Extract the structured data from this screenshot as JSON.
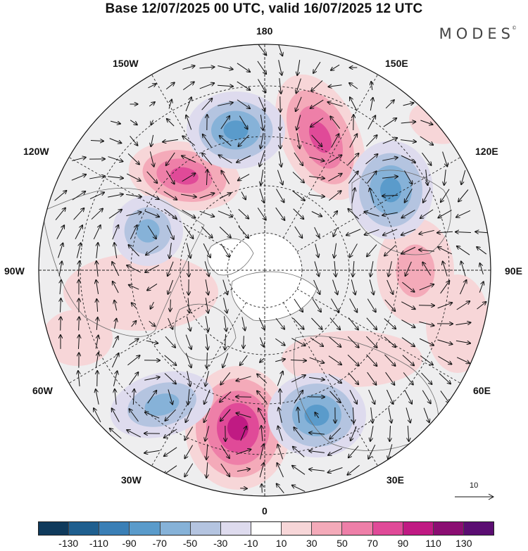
{
  "title": "Base 12/07/2025 00 UTC, valid 16/07/2025 12 UTC",
  "brand": "MODES",
  "brand_mark": "©",
  "longitude_labels": {
    "lon_180": "180",
    "lon_150w": "150W",
    "lon_150e": "150E",
    "lon_120w": "120W",
    "lon_120e": "120E",
    "lon_90w": "90W",
    "lon_90e": "90E",
    "lon_60w": "60W",
    "lon_60e": "60E",
    "lon_30w": "30W",
    "lon_30e": "30E",
    "lon_0": "0"
  },
  "reference_vector_label": "10",
  "colorbar": {
    "colors": [
      "#0f3a5c",
      "#1f5f8f",
      "#3a7fb6",
      "#5a9bcb",
      "#86b2d8",
      "#b4c4e0",
      "#dedbee",
      "#ffffff",
      "#f7d6d8",
      "#f4aab9",
      "#ee7fa8",
      "#e04a98",
      "#c01a83",
      "#8b0e72",
      "#5b0d72"
    ],
    "tick_labels": [
      "-130",
      "-110",
      "-90",
      "-70",
      "-50",
      "-30",
      "-10",
      "10",
      "30",
      "50",
      "70",
      "90",
      "110",
      "130"
    ]
  }
}
